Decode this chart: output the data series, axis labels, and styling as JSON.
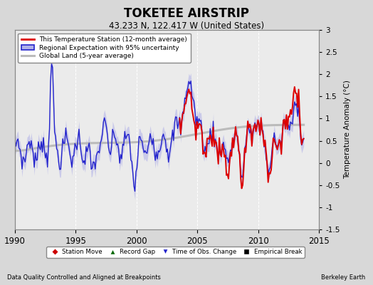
{
  "title": "TOKETEE AIRSTRIP",
  "subtitle": "43.233 N, 122.417 W (United States)",
  "ylabel": "Temperature Anomaly (°C)",
  "xlabel_left": "Data Quality Controlled and Aligned at Breakpoints",
  "xlabel_right": "Berkeley Earth",
  "ylim": [
    -1.5,
    3.0
  ],
  "xlim": [
    1990,
    2015
  ],
  "xticks": [
    1990,
    1995,
    2000,
    2005,
    2010,
    2015
  ],
  "yticks": [
    -1.5,
    -1.0,
    -0.5,
    0.0,
    0.5,
    1.0,
    1.5,
    2.0,
    2.5,
    3.0
  ],
  "red_color": "#dd0000",
  "blue_color": "#2222cc",
  "blue_fill_color": "#b0b0e8",
  "gray_color": "#bbbbbb",
  "bg_color": "#d8d8d8",
  "plot_bg_color": "#ebebeb",
  "legend_items": [
    "This Temperature Station (12-month average)",
    "Regional Expectation with 95% uncertainty",
    "Global Land (5-year average)"
  ],
  "bottom_legend": [
    {
      "marker": "D",
      "color": "#cc0000",
      "label": "Station Move"
    },
    {
      "marker": "^",
      "color": "#006600",
      "label": "Record Gap"
    },
    {
      "marker": "v",
      "color": "#2222cc",
      "label": "Time of Obs. Change"
    },
    {
      "marker": "s",
      "color": "#000000",
      "label": "Empirical Break"
    }
  ]
}
